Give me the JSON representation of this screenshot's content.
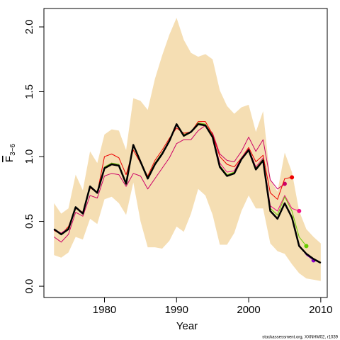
{
  "chart_data": {
    "type": "retrospective-line",
    "xlabel": "Year",
    "ylabel": {
      "symbol": "F",
      "subscript": "3−6"
    },
    "footnote": "stockassessment.org, XXNHM02, r1039",
    "xlim": [
      1971.6,
      2010.9
    ],
    "xticks": [
      1980,
      1990,
      2000,
      2010
    ],
    "ylim": [
      -0.087,
      2.142
    ],
    "yticks": [
      {
        "value": 0,
        "label": "0.0"
      },
      0.5,
      {
        "value": 1,
        "label": "1.0"
      },
      1.5,
      {
        "value": 2,
        "label": "2.0"
      }
    ],
    "x": [
      1973,
      1974,
      1975,
      1976,
      1977,
      1978,
      1979,
      1980,
      1981,
      1982,
      1983,
      1984,
      1985,
      1986,
      1987,
      1988,
      1989,
      1990,
      1991,
      1992,
      1993,
      1994,
      1995,
      1996,
      1997,
      1998,
      1999,
      2000,
      2001,
      2002,
      2003,
      2004,
      2005,
      2006,
      2007,
      2008,
      2009,
      2010
    ],
    "band": {
      "color": "#f5deb3",
      "lower": [
        0.24,
        0.22,
        0.26,
        0.38,
        0.36,
        0.52,
        0.48,
        0.67,
        0.69,
        0.64,
        0.55,
        0.8,
        0.5,
        0.3,
        0.3,
        0.29,
        0.35,
        0.46,
        0.42,
        0.56,
        0.75,
        0.7,
        0.55,
        0.32,
        0.32,
        0.41,
        0.58,
        0.7,
        0.6,
        0.6,
        0.33,
        0.27,
        0.25,
        0.17,
        0.1,
        0.06,
        0.05,
        0.04
      ],
      "upper": [
        0.64,
        0.56,
        0.6,
        0.86,
        0.74,
        1.04,
        0.95,
        1.17,
        1.21,
        1.2,
        1.05,
        1.45,
        1.43,
        1.36,
        1.6,
        1.78,
        1.94,
        2.07,
        1.9,
        1.8,
        1.77,
        1.79,
        1.75,
        1.51,
        1.39,
        1.33,
        1.38,
        1.4,
        1.19,
        1.35,
        0.82,
        0.73,
        1.03,
        0.88,
        0.58,
        0.44,
        0.38,
        0.33
      ]
    },
    "series": [
      {
        "color": "#cc0066",
        "width": 1,
        "values": [
          0.38,
          0.34,
          0.4,
          0.57,
          0.54,
          0.7,
          0.68,
          0.85,
          0.87,
          0.86,
          0.77,
          0.87,
          0.85,
          0.75,
          0.83,
          0.91,
          0.99,
          1.1,
          1.13,
          1.13,
          1.2,
          1.24,
          1.18,
          1.02,
          0.97,
          0.96,
          1.04,
          1.15,
          1.04,
          1.13,
          0.82,
          0.75,
          0.79,
          null,
          null,
          null,
          null,
          null
        ]
      },
      {
        "color": "#ee0000",
        "width": 1,
        "values": [
          0.43,
          0.4,
          0.46,
          0.6,
          0.57,
          0.76,
          0.72,
          1.0,
          1.02,
          0.99,
          0.86,
          1.05,
          0.95,
          0.85,
          0.97,
          1.05,
          1.14,
          1.22,
          1.18,
          1.19,
          1.27,
          1.27,
          1.17,
          1.0,
          0.94,
          0.92,
          0.99,
          1.07,
          0.96,
          1.01,
          0.72,
          0.67,
          0.83,
          0.84,
          null,
          null,
          null,
          null
        ]
      },
      {
        "color": "#ee1188",
        "width": 1,
        "values": [
          0.44,
          0.41,
          0.45,
          0.61,
          0.56,
          0.77,
          0.72,
          0.92,
          0.95,
          0.93,
          0.8,
          1.08,
          0.97,
          0.84,
          0.95,
          1.03,
          1.12,
          1.24,
          1.17,
          1.19,
          1.26,
          1.25,
          1.16,
          0.95,
          0.88,
          0.89,
          0.99,
          1.06,
          0.92,
          0.99,
          0.62,
          0.58,
          0.7,
          0.6,
          0.58,
          null,
          null,
          null
        ]
      },
      {
        "color": "#66cc00",
        "width": 1,
        "values": [
          0.44,
          0.4,
          0.45,
          0.61,
          0.56,
          0.77,
          0.72,
          0.92,
          0.95,
          0.94,
          0.8,
          1.09,
          0.97,
          0.84,
          0.95,
          1.03,
          1.12,
          1.25,
          1.17,
          1.19,
          1.26,
          1.25,
          1.16,
          0.93,
          0.86,
          0.88,
          0.98,
          1.05,
          0.91,
          0.98,
          0.6,
          0.55,
          0.69,
          0.58,
          0.38,
          0.31,
          null,
          null
        ]
      },
      {
        "color": "#8b00c8",
        "width": 1,
        "values": [
          0.44,
          0.4,
          0.44,
          0.61,
          0.56,
          0.77,
          0.72,
          0.91,
          0.94,
          0.93,
          0.79,
          1.09,
          0.96,
          0.83,
          0.94,
          1.02,
          1.12,
          1.25,
          1.16,
          1.19,
          1.25,
          1.24,
          1.15,
          0.92,
          0.85,
          0.87,
          0.98,
          1.05,
          0.9,
          0.97,
          0.58,
          0.52,
          0.64,
          0.53,
          0.32,
          0.24,
          0.2,
          null
        ]
      },
      {
        "color": "#000000",
        "width": 2.5,
        "values": [
          0.44,
          0.4,
          0.44,
          0.61,
          0.56,
          0.77,
          0.72,
          0.91,
          0.94,
          0.93,
          0.79,
          1.09,
          0.96,
          0.83,
          0.94,
          1.02,
          1.12,
          1.25,
          1.16,
          1.19,
          1.25,
          1.24,
          1.15,
          0.92,
          0.85,
          0.87,
          0.98,
          1.05,
          0.9,
          0.97,
          0.58,
          0.52,
          0.64,
          0.53,
          0.31,
          0.25,
          0.21,
          0.18
        ]
      }
    ]
  }
}
